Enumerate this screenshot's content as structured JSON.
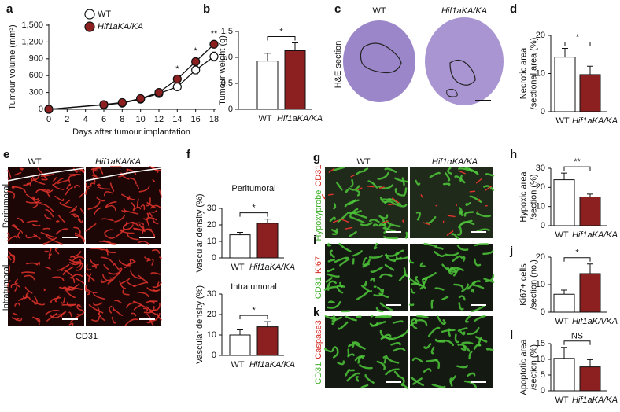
{
  "chart_data": [
    {
      "panel": "a",
      "type": "line",
      "x": [
        0,
        6,
        8,
        10,
        12,
        14,
        16,
        18
      ],
      "xlim": [
        0,
        18
      ],
      "xticks": [
        0,
        2,
        4,
        6,
        8,
        10,
        12,
        14,
        16,
        18
      ],
      "ylim": [
        0,
        1500
      ],
      "yticks": [
        0,
        300,
        600,
        900,
        {
          "value": 1200,
          "label": "1,200"
        },
        {
          "value": 1500,
          "label": "1,500"
        }
      ],
      "x_label": "Days after tumour implantation",
      "y_label": [
        "Tumour volume (mm³)"
      ],
      "legend": "upper left",
      "series": [
        {
          "name": "WT",
          "color": "#ffffff",
          "values": [
            0,
            80,
            110,
            180,
            280,
            400,
            700,
            940
          ],
          "errors": [
            0,
            10,
            15,
            20,
            30,
            60,
            70,
            80
          ]
        },
        {
          "name": "Hif1aKA/KA",
          "color": "#8c1f1f",
          "values": [
            0,
            85,
            120,
            190,
            300,
            540,
            850,
            1160
          ],
          "errors": [
            0,
            10,
            15,
            20,
            30,
            50,
            60,
            60
          ]
        }
      ],
      "annotations": [
        {
          "x": 14,
          "text": "*"
        },
        {
          "x": 16,
          "text": "*"
        },
        {
          "x": 18,
          "text": "**"
        }
      ]
    },
    {
      "panel": "b",
      "type": "bar",
      "categories": [
        "WT",
        "Hif1aKA/KA"
      ],
      "colors": [
        "#ffffff",
        "#8c1f1f"
      ],
      "values": [
        0.93,
        1.13
      ],
      "errors": [
        0.15,
        0.15
      ],
      "ylim": [
        0,
        1.5
      ],
      "yticks": [
        0,
        0.5,
        {
          "value": 1,
          "label": "1.0"
        },
        1.5
      ],
      "y_label": [
        "Tumour weight (g)"
      ],
      "significance": "*"
    },
    {
      "panel": "d",
      "type": "bar",
      "categories": [
        "WT",
        "Hif1aKA/KA"
      ],
      "colors": [
        "#ffffff",
        "#8c1f1f"
      ],
      "values": [
        14.3,
        9.7
      ],
      "errors": [
        2.3,
        2.2
      ],
      "ylim": [
        0,
        20
      ],
      "yticks": [
        0,
        10,
        20
      ],
      "y_label": [
        "Necrotic area",
        "/sectional area (%)"
      ],
      "significance": "*"
    },
    {
      "panel": "f",
      "type": "bar",
      "title": "Peritumoral",
      "categories": [
        "WT",
        "Hif1aKA/KA"
      ],
      "colors": [
        "#ffffff",
        "#8c1f1f"
      ],
      "values": [
        14,
        21
      ],
      "errors": [
        1.5,
        2.5
      ],
      "ylim": [
        0,
        30
      ],
      "yticks": [
        0,
        10,
        20,
        30
      ],
      "y_label": [
        "Vascular density (%)"
      ],
      "significance": "*"
    },
    {
      "type": "bar",
      "title": "Intratumoral",
      "categories": [
        "WT",
        "Hif1aKA/KA"
      ],
      "colors": [
        "#ffffff",
        "#8c1f1f"
      ],
      "values": [
        10,
        14
      ],
      "errors": [
        2.5,
        2.5
      ],
      "ylim": [
        0,
        30
      ],
      "yticks": [
        0,
        10,
        20,
        30
      ],
      "y_label": [
        "Vascular density (%)"
      ],
      "significance": "*"
    },
    {
      "panel": "h",
      "type": "bar",
      "categories": [
        "WT",
        "Hif1aKA/KA"
      ],
      "colors": [
        "#ffffff",
        "#8c1f1f"
      ],
      "values": [
        24,
        15
      ],
      "errors": [
        3.5,
        1.5
      ],
      "ylim": [
        0,
        30
      ],
      "yticks": [
        0,
        10,
        20,
        30
      ],
      "y_label": [
        "Hypoxic area",
        "/section (%)"
      ],
      "significance": "**"
    },
    {
      "panel": "j",
      "type": "bar",
      "categories": [
        "WT",
        "Hif1aKA/KA"
      ],
      "colors": [
        "#ffffff",
        "#8c1f1f"
      ],
      "values": [
        6.5,
        14
      ],
      "errors": [
        1.5,
        3.5
      ],
      "ylim": [
        0,
        20
      ],
      "yticks": [
        0,
        10,
        20
      ],
      "y_label": [
        "Ki67+ cells",
        "/section (no.)"
      ],
      "significance": "*"
    },
    {
      "panel": "l",
      "type": "bar",
      "categories": [
        "WT",
        "Hif1aKA/KA"
      ],
      "colors": [
        "#ffffff",
        "#8c1f1f"
      ],
      "values": [
        10.3,
        7.6
      ],
      "errors": [
        3.5,
        2.3
      ],
      "ylim": [
        0,
        15
      ],
      "yticks": [
        0,
        5,
        10,
        15
      ],
      "y_label": [
        "Apoptotic area",
        "/section (%)"
      ],
      "significance": "NS"
    }
  ],
  "images": [
    {
      "panel": "c",
      "columns": [
        "WT",
        "Hif1aKA/KA"
      ],
      "side_label": "H&E section"
    },
    {
      "panel": "e",
      "columns": [
        "WT",
        "Hif1aKA/KA"
      ],
      "rows": [
        "Peritumoral",
        "Intratumoral"
      ],
      "caption": "CD31"
    },
    {
      "panel": "g",
      "columns": [
        "WT",
        "Hif1αKA/KA"
      ],
      "rows": [
        {
          "panel": "g",
          "labels": [
            "Hypoxyprobe",
            "CD31"
          ]
        },
        {
          "panel": "i",
          "labels": [
            "CD31",
            "Ki67"
          ]
        },
        {
          "panel": "k",
          "labels": [
            "CD31",
            "Caspase3"
          ]
        }
      ]
    }
  ]
}
